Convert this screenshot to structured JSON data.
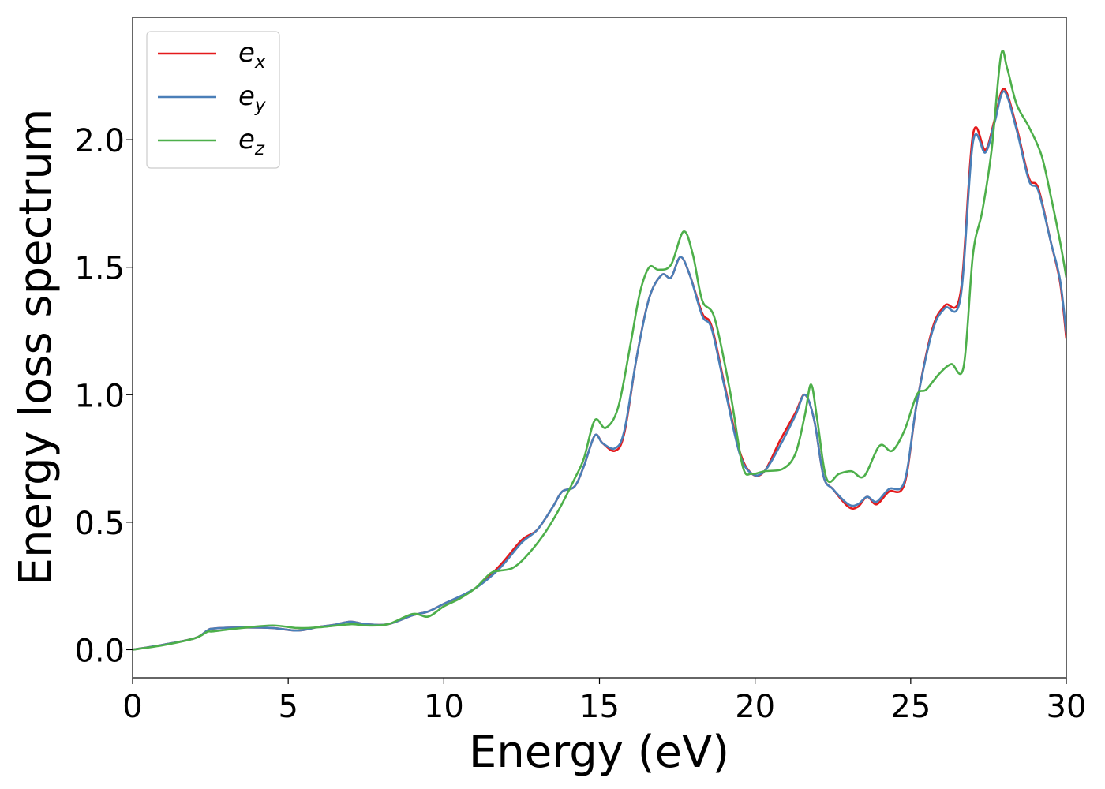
{
  "chart_data": {
    "type": "line",
    "title": "",
    "xlabel": "Energy (eV)",
    "ylabel": "Energy loss spectrum",
    "xlim": [
      0,
      30
    ],
    "ylim": [
      -0.11,
      2.48
    ],
    "xticks": [
      0,
      5,
      10,
      15,
      20,
      25,
      30
    ],
    "xtick_labels": [
      "0",
      "5",
      "10",
      "15",
      "20",
      "25",
      "30"
    ],
    "yticks": [
      0.0,
      0.5,
      1.0,
      1.5,
      2.0
    ],
    "ytick_labels": [
      "0.0",
      "0.5",
      "1.0",
      "1.5",
      "2.0"
    ],
    "grid": false,
    "legend_position": "top-left",
    "series": [
      {
        "name": "e_x",
        "legend_base": "e",
        "legend_sub": "x",
        "color": "#e41a1c",
        "points": [
          [
            0,
            0
          ],
          [
            1,
            0.02
          ],
          [
            2,
            0.045
          ],
          [
            2.4,
            0.075
          ],
          [
            2.6,
            0.083
          ],
          [
            3.5,
            0.087
          ],
          [
            4.5,
            0.085
          ],
          [
            5.3,
            0.075
          ],
          [
            6,
            0.09
          ],
          [
            6.5,
            0.098
          ],
          [
            7,
            0.11
          ],
          [
            7.5,
            0.1
          ],
          [
            8.2,
            0.1
          ],
          [
            9,
            0.135
          ],
          [
            9.5,
            0.15
          ],
          [
            10,
            0.18
          ],
          [
            11,
            0.24
          ],
          [
            11.8,
            0.33
          ],
          [
            12.5,
            0.43
          ],
          [
            13,
            0.47
          ],
          [
            13.5,
            0.56
          ],
          [
            13.8,
            0.62
          ],
          [
            14.2,
            0.64
          ],
          [
            14.5,
            0.72
          ],
          [
            14.85,
            0.84
          ],
          [
            15.1,
            0.81
          ],
          [
            15.5,
            0.78
          ],
          [
            15.8,
            0.85
          ],
          [
            16.2,
            1.15
          ],
          [
            16.6,
            1.38
          ],
          [
            17.0,
            1.47
          ],
          [
            17.3,
            1.46
          ],
          [
            17.6,
            1.54
          ],
          [
            17.9,
            1.47
          ],
          [
            18.3,
            1.32
          ],
          [
            18.6,
            1.27
          ],
          [
            19.0,
            1.05
          ],
          [
            19.5,
            0.78
          ],
          [
            19.9,
            0.69
          ],
          [
            20.3,
            0.7
          ],
          [
            20.8,
            0.82
          ],
          [
            21.3,
            0.93
          ],
          [
            21.6,
            1.0
          ],
          [
            21.9,
            0.9
          ],
          [
            22.2,
            0.68
          ],
          [
            22.5,
            0.63
          ],
          [
            23.0,
            0.56
          ],
          [
            23.3,
            0.56
          ],
          [
            23.6,
            0.6
          ],
          [
            23.9,
            0.57
          ],
          [
            24.3,
            0.62
          ],
          [
            24.8,
            0.65
          ],
          [
            25.2,
            0.97
          ],
          [
            25.7,
            1.26
          ],
          [
            26.1,
            1.35
          ],
          [
            26.6,
            1.4
          ],
          [
            27.0,
            2.02
          ],
          [
            27.4,
            1.96
          ],
          [
            27.7,
            2.08
          ],
          [
            28.0,
            2.2
          ],
          [
            28.4,
            2.05
          ],
          [
            28.8,
            1.85
          ],
          [
            29.1,
            1.81
          ],
          [
            29.5,
            1.6
          ],
          [
            29.8,
            1.44
          ],
          [
            30,
            1.22
          ]
        ]
      },
      {
        "name": "e_y",
        "legend_base": "e",
        "legend_sub": "y",
        "color": "#4a7fb8",
        "points": [
          [
            0,
            0
          ],
          [
            1,
            0.02
          ],
          [
            2,
            0.045
          ],
          [
            2.4,
            0.075
          ],
          [
            2.6,
            0.083
          ],
          [
            3.5,
            0.087
          ],
          [
            4.5,
            0.085
          ],
          [
            5.3,
            0.075
          ],
          [
            6,
            0.09
          ],
          [
            6.5,
            0.098
          ],
          [
            7,
            0.11
          ],
          [
            7.5,
            0.1
          ],
          [
            8.2,
            0.1
          ],
          [
            9,
            0.135
          ],
          [
            9.5,
            0.15
          ],
          [
            10,
            0.18
          ],
          [
            11,
            0.24
          ],
          [
            11.8,
            0.32
          ],
          [
            12.5,
            0.42
          ],
          [
            13,
            0.47
          ],
          [
            13.5,
            0.56
          ],
          [
            13.8,
            0.62
          ],
          [
            14.2,
            0.64
          ],
          [
            14.5,
            0.72
          ],
          [
            14.85,
            0.84
          ],
          [
            15.1,
            0.81
          ],
          [
            15.5,
            0.79
          ],
          [
            15.8,
            0.86
          ],
          [
            16.2,
            1.15
          ],
          [
            16.6,
            1.38
          ],
          [
            17.0,
            1.47
          ],
          [
            17.3,
            1.46
          ],
          [
            17.6,
            1.54
          ],
          [
            17.9,
            1.47
          ],
          [
            18.3,
            1.31
          ],
          [
            18.6,
            1.26
          ],
          [
            19.0,
            1.04
          ],
          [
            19.5,
            0.77
          ],
          [
            19.9,
            0.69
          ],
          [
            20.3,
            0.7
          ],
          [
            20.8,
            0.8
          ],
          [
            21.3,
            0.92
          ],
          [
            21.6,
            1.0
          ],
          [
            21.9,
            0.9
          ],
          [
            22.2,
            0.68
          ],
          [
            22.5,
            0.63
          ],
          [
            23.0,
            0.57
          ],
          [
            23.3,
            0.57
          ],
          [
            23.6,
            0.6
          ],
          [
            23.9,
            0.58
          ],
          [
            24.3,
            0.63
          ],
          [
            24.8,
            0.66
          ],
          [
            25.2,
            0.97
          ],
          [
            25.7,
            1.25
          ],
          [
            26.1,
            1.34
          ],
          [
            26.6,
            1.38
          ],
          [
            27.0,
            1.99
          ],
          [
            27.4,
            1.95
          ],
          [
            27.7,
            2.07
          ],
          [
            28.0,
            2.19
          ],
          [
            28.4,
            2.04
          ],
          [
            28.8,
            1.84
          ],
          [
            29.1,
            1.8
          ],
          [
            29.5,
            1.6
          ],
          [
            29.8,
            1.45
          ],
          [
            30,
            1.24
          ]
        ]
      },
      {
        "name": "e_z",
        "legend_base": "e",
        "legend_sub": "z",
        "color": "#4daf4a",
        "points": [
          [
            0,
            0
          ],
          [
            1,
            0.018
          ],
          [
            2,
            0.045
          ],
          [
            2.4,
            0.07
          ],
          [
            2.6,
            0.072
          ],
          [
            3.5,
            0.085
          ],
          [
            4.5,
            0.095
          ],
          [
            5.3,
            0.085
          ],
          [
            6,
            0.088
          ],
          [
            7,
            0.1
          ],
          [
            7.5,
            0.095
          ],
          [
            8.2,
            0.1
          ],
          [
            9,
            0.14
          ],
          [
            9.5,
            0.13
          ],
          [
            10,
            0.17
          ],
          [
            10.5,
            0.2
          ],
          [
            11,
            0.24
          ],
          [
            11.5,
            0.3
          ],
          [
            11.8,
            0.31
          ],
          [
            12.2,
            0.32
          ],
          [
            12.6,
            0.36
          ],
          [
            13.2,
            0.45
          ],
          [
            13.7,
            0.55
          ],
          [
            14.2,
            0.67
          ],
          [
            14.5,
            0.75
          ],
          [
            14.85,
            0.9
          ],
          [
            15.2,
            0.87
          ],
          [
            15.6,
            0.95
          ],
          [
            16.0,
            1.2
          ],
          [
            16.3,
            1.4
          ],
          [
            16.6,
            1.5
          ],
          [
            16.9,
            1.49
          ],
          [
            17.3,
            1.51
          ],
          [
            17.7,
            1.64
          ],
          [
            18.0,
            1.55
          ],
          [
            18.3,
            1.37
          ],
          [
            18.7,
            1.3
          ],
          [
            19.2,
            1.01
          ],
          [
            19.6,
            0.72
          ],
          [
            19.9,
            0.69
          ],
          [
            20.3,
            0.7
          ],
          [
            20.9,
            0.71
          ],
          [
            21.3,
            0.77
          ],
          [
            21.6,
            0.92
          ],
          [
            21.8,
            1.04
          ],
          [
            22.0,
            0.9
          ],
          [
            22.3,
            0.67
          ],
          [
            22.7,
            0.69
          ],
          [
            23.1,
            0.7
          ],
          [
            23.5,
            0.68
          ],
          [
            24.0,
            0.8
          ],
          [
            24.4,
            0.78
          ],
          [
            24.8,
            0.86
          ],
          [
            25.2,
            1.0
          ],
          [
            25.5,
            1.02
          ],
          [
            25.9,
            1.08
          ],
          [
            26.3,
            1.12
          ],
          [
            26.7,
            1.11
          ],
          [
            27.0,
            1.55
          ],
          [
            27.3,
            1.72
          ],
          [
            27.6,
            1.96
          ],
          [
            27.9,
            2.33
          ],
          [
            28.1,
            2.28
          ],
          [
            28.4,
            2.14
          ],
          [
            28.8,
            2.05
          ],
          [
            29.2,
            1.94
          ],
          [
            29.5,
            1.78
          ],
          [
            29.8,
            1.6
          ],
          [
            30,
            1.46
          ]
        ]
      }
    ]
  }
}
